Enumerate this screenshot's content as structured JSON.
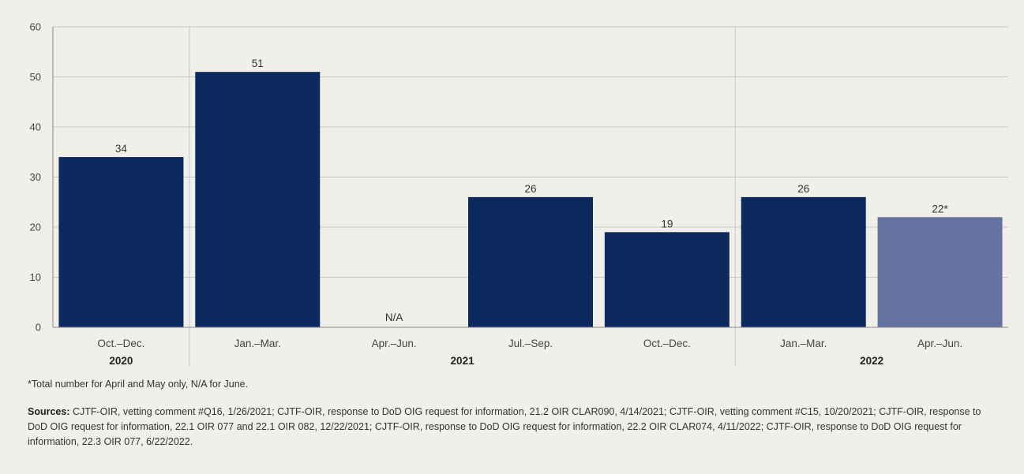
{
  "chart_data": {
    "type": "bar",
    "title": "",
    "xlabel": "",
    "ylabel": "",
    "ylim": [
      0,
      60
    ],
    "yticks": [
      0,
      10,
      20,
      30,
      40,
      50,
      60
    ],
    "grid": "horizontal",
    "categories": [
      "Oct.–Dec.",
      "Jan.–Mar.",
      "Apr.–Jun.",
      "Jul.–Sep.",
      "Oct.–Dec.",
      "Jan.–Mar.",
      "Apr.–Jun."
    ],
    "groups": [
      {
        "label": "2020",
        "start": 0,
        "end": 0
      },
      {
        "label": "2021",
        "start": 1,
        "end": 4
      },
      {
        "label": "2022",
        "start": 5,
        "end": 6
      }
    ],
    "values": [
      34,
      51,
      null,
      26,
      19,
      26,
      22
    ],
    "value_labels": [
      "34",
      "51",
      "N/A",
      "26",
      "19",
      "26",
      "22*"
    ],
    "bar_colors": [
      "#0d2a5e",
      "#0d2a5e",
      "#0d2a5e",
      "#0d2a5e",
      "#0d2a5e",
      "#0d2a5e",
      "#6573a1"
    ],
    "grid_color": "#c9c7c2",
    "axis_color": "#8a8a8a"
  },
  "footnote": "*Total number for April and May only, N/A for June.",
  "sources": {
    "label": "Sources:",
    "text": " CJTF-OIR, vetting comment #Q16, 1/26/2021; CJTF-OIR, response to DoD OIG request for information, 21.2 OIR CLAR090, 4/14/2021; CJTF-OIR, vetting comment #C15, 10/20/2021; CJTF-OIR, response to DoD OIG request for information, 22.1 OIR 077 and 22.1 OIR 082, 12/22/2021; CJTF-OIR, response to DoD OIG request for information,  22.2 OIR CLAR074, 4/11/2022; CJTF-OIR, response to DoD OIG request for information, 22.3 OIR 077, 6/22/2022."
  }
}
